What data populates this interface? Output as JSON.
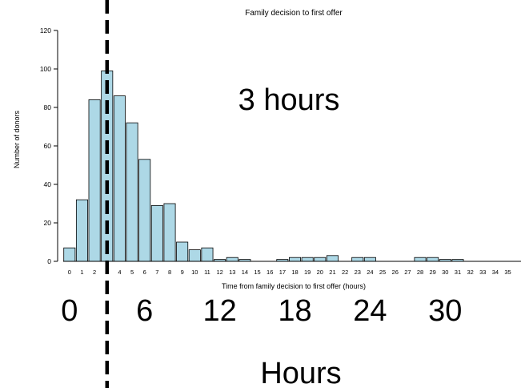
{
  "chart_data": {
    "type": "bar",
    "title": "Family decision to first offer",
    "xlabel": "Time from family decision to first offer (hours)",
    "ylabel": "Number of donors",
    "categories": [
      "0",
      "1",
      "2",
      "3",
      "4",
      "5",
      "6",
      "7",
      "8",
      "9",
      "10",
      "11",
      "12",
      "13",
      "14",
      "15",
      "16",
      "17",
      "18",
      "19",
      "20",
      "21",
      "22",
      "23",
      "24",
      "25",
      "26",
      "27",
      "28",
      "29",
      "30",
      "31",
      "32",
      "33",
      "34",
      "35"
    ],
    "values": [
      7,
      32,
      84,
      99,
      86,
      72,
      53,
      29,
      30,
      10,
      6,
      7,
      1,
      2,
      1,
      0,
      0,
      1,
      2,
      2,
      2,
      3,
      0,
      2,
      2,
      0,
      0,
      0,
      2,
      2,
      1,
      1,
      0,
      0,
      0,
      0
    ],
    "ylim": [
      0,
      120
    ],
    "yticks": [
      0,
      20,
      40,
      60,
      80,
      100,
      120
    ],
    "grid": false,
    "annotation": {
      "text": "3 hours",
      "x": 3
    },
    "reference_line": {
      "x": 3,
      "style": "dashed"
    },
    "overlay_xaxis": {
      "ticks": [
        "0",
        "6",
        "12",
        "18",
        "24",
        "30"
      ],
      "label": "Hours"
    }
  },
  "colors": {
    "bar_fill": "#add8e6",
    "bar_stroke": "#000000",
    "reference_line": "#000000"
  }
}
